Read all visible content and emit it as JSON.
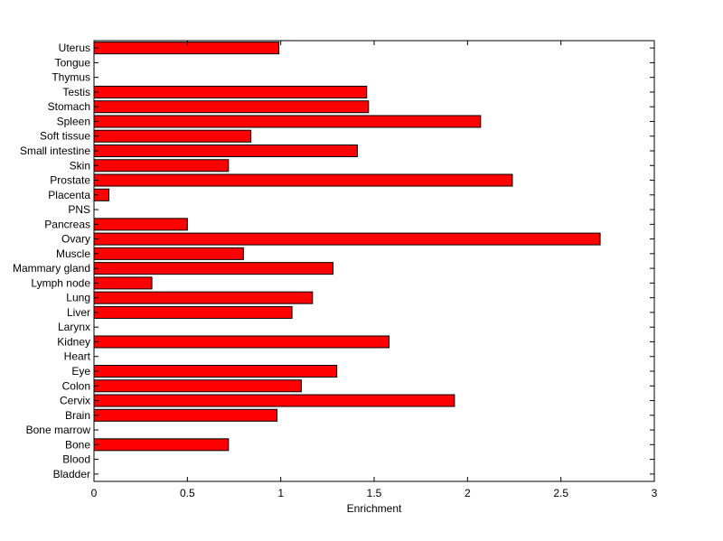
{
  "chart_data": {
    "type": "bar",
    "orientation": "horizontal",
    "xlabel": "Enrichment",
    "ylabel": "",
    "title": "",
    "xlim": [
      0,
      3
    ],
    "xticks": [
      0,
      0.5,
      1,
      1.5,
      2,
      2.5,
      3
    ],
    "xtick_labels": [
      "0",
      "0.5",
      "1",
      "1.5",
      "2",
      "2.5",
      "3"
    ],
    "bar_color": "#ff0000",
    "edge_color": "#000000",
    "grid": false,
    "categories": [
      "Bladder",
      "Blood",
      "Bone",
      "Bone marrow",
      "Brain",
      "Cervix",
      "Colon",
      "Eye",
      "Heart",
      "Kidney",
      "Larynx",
      "Liver",
      "Lung",
      "Lymph node",
      "Mammary gland",
      "Muscle",
      "Ovary",
      "Pancreas",
      "PNS",
      "Placenta",
      "Prostate",
      "Skin",
      "Small intestine",
      "Soft tissue",
      "Spleen",
      "Stomach",
      "Testis",
      "Thymus",
      "Tongue",
      "Uterus"
    ],
    "values": [
      0,
      0,
      0.72,
      0,
      0.98,
      1.93,
      1.11,
      1.3,
      0,
      1.58,
      0,
      1.06,
      1.17,
      0.31,
      1.28,
      0.8,
      2.71,
      0.5,
      0,
      0.08,
      2.24,
      0.72,
      1.41,
      0.84,
      2.07,
      1.47,
      1.46,
      0,
      0,
      0.99
    ]
  }
}
